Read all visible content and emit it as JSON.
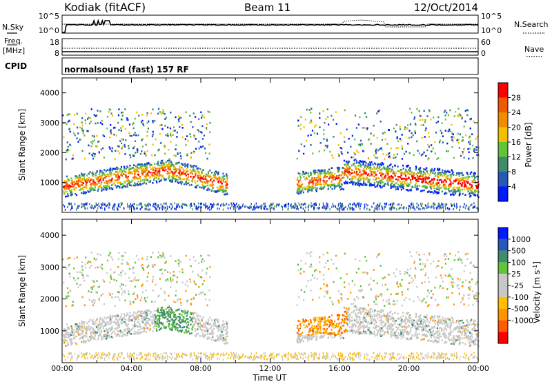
{
  "header": {
    "radar": "Kodiak (fitACF)",
    "beam": "Beam 11",
    "date": "12/Oct/2014"
  },
  "panels": {
    "nsky": {
      "label_top": "N.Sky",
      "left_ticks": [
        "10^5",
        "10^0"
      ],
      "right_ticks": [
        "10^5",
        "10^0"
      ],
      "right_label": "N.Search"
    },
    "freq": {
      "label_top": "Freq.",
      "label_bottom": "[MHz]",
      "left_ticks": [
        "18",
        "8"
      ],
      "right_ticks": [
        "60",
        "0"
      ],
      "right_label": "Nave"
    },
    "cpid": {
      "label": "CPID",
      "text": "normalsound (fast) 157 RF"
    }
  },
  "colors": {
    "power_scale": [
      "#0019ff",
      "#2757b8",
      "#3e8c6a",
      "#62c23a",
      "#f5c000",
      "#f08e00",
      "#f25a00",
      "#ff0000"
    ],
    "velocity_scale": [
      "#ff0000",
      "#ff5a00",
      "#ff9400",
      "#ffbf00",
      "#c8c8c8",
      "#c8c8c8",
      "#62c23a",
      "#3e8c6a",
      "#2757b8",
      "#0019ff"
    ]
  },
  "power_colorbar": {
    "label": "Power [dB]",
    "ticks": [
      "28",
      "24",
      "20",
      "16",
      "12",
      "8",
      "4"
    ]
  },
  "velocity_colorbar": {
    "label_main": "Velocity [m s",
    "label_sup": "-1",
    "label_end": "]",
    "ticks": [
      "1000",
      "500",
      "100",
      "25",
      "-25",
      "-100",
      "-500",
      "-1000"
    ]
  },
  "chart_data": [
    {
      "type": "heatmap",
      "name": "power",
      "ylabel": "Slant Range [km]",
      "ylim": [
        0,
        4500
      ],
      "y_ticks": [
        "4000",
        "3000",
        "2000",
        "1000"
      ],
      "xlim_hours": [
        0,
        24
      ],
      "x_ticks": [
        "00:00",
        "04:00",
        "08:00",
        "12:00",
        "16:00",
        "20:00",
        "00:00"
      ]
    },
    {
      "type": "heatmap",
      "name": "velocity",
      "ylabel": "Slant Range [km]",
      "xlabel": "Time UT",
      "ylim": [
        0,
        4500
      ],
      "y_ticks": [
        "4000",
        "3000",
        "2000",
        "1000"
      ],
      "xlim_hours": [
        0,
        24
      ],
      "x_ticks": [
        "00:00",
        "04:00",
        "08:00",
        "12:00",
        "16:00",
        "20:00",
        "00:00"
      ]
    }
  ]
}
